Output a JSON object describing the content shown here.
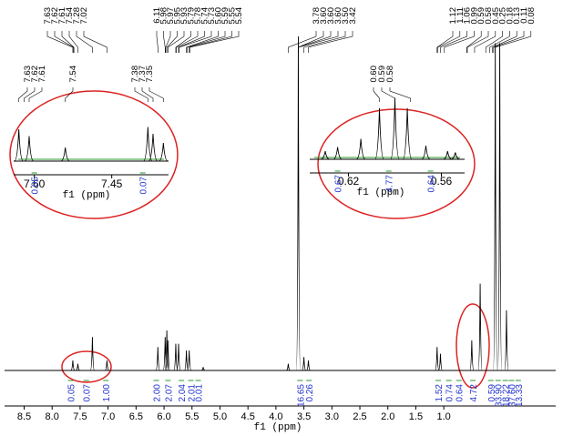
{
  "chart_data": {
    "type": "spectrum",
    "x_label": "f1 (ppm)",
    "xlim": [
      8.85,
      -1.0
    ],
    "xticks": [
      8.5,
      {
        "value": 8,
        "label": "8.0"
      },
      7.5,
      {
        "value": 7,
        "label": "7.0"
      },
      6.5,
      {
        "value": 6,
        "label": "6.0"
      },
      5.5,
      {
        "value": 5,
        "label": "5.0"
      },
      4.5,
      {
        "value": 4,
        "label": "4.0"
      },
      3.5,
      {
        "value": 3,
        "label": "3.0"
      },
      2.5,
      {
        "value": 2,
        "label": "2.0"
      },
      1.5,
      {
        "value": 1,
        "label": "1.0"
      }
    ],
    "ylim": [
      0,
      1
    ],
    "color": "#000000",
    "peaks": {
      "x": [
        7.63,
        7.54,
        7.28,
        7.02,
        6.11,
        5.98,
        5.95,
        5.93,
        5.79,
        5.74,
        5.6,
        5.55,
        5.3,
        3.78,
        3.6,
        3.5,
        3.42,
        1.12,
        1.06,
        0.5,
        0.35,
        0.08,
        0.0,
        -0.12
      ],
      "values": [
        0.03,
        0.02,
        0.1,
        0.03,
        0.07,
        0.1,
        0.12,
        0.09,
        0.08,
        0.08,
        0.06,
        0.06,
        0.01,
        0.02,
        1.0,
        0.04,
        0.03,
        0.07,
        0.05,
        0.09,
        0.26,
        0.98,
        0.98,
        0.18
      ]
    },
    "peak_label_groups": [
      [
        "7.63",
        "7.62",
        "7.61",
        "7.54",
        "7.28",
        "7.02"
      ],
      [
        "6.11",
        "5.98",
        "5.97",
        "5.95",
        "5.93",
        "5.79",
        "5.78",
        "5.74",
        "5.73",
        "5.60",
        "5.59",
        "5.55",
        "5.54"
      ],
      [
        "3.78",
        "3.60",
        "3.60",
        "3.60",
        "3.50",
        "3.42"
      ],
      [
        "1.12",
        "1.11",
        "1.06",
        "0.99",
        "0.59",
        "0.58",
        "0.45",
        "0.25",
        "0.18",
        "0.13",
        "0.11",
        "0.08"
      ]
    ],
    "integrals": {
      "x": [
        7.67,
        7.39,
        7.04,
        6.14,
        5.93,
        5.69,
        5.52,
        5.39,
        3.57,
        3.41,
        1.1,
        0.91,
        0.73,
        0.48,
        0.16,
        0.03,
        -0.1,
        -0.21,
        -0.33
      ],
      "labels": [
        "0.05",
        "0.07",
        "1.00",
        "2.00",
        "2.07",
        "2.04",
        "2.01",
        "0.01",
        "16.65",
        "0.26",
        "1.52",
        "0.74",
        "0.64",
        "4.72",
        "0.59",
        "33.90",
        "18.22",
        "37.60",
        "13.33"
      ]
    }
  },
  "insets": [
    {
      "x_label": "f1 (ppm)",
      "xlim": [
        7.64,
        7.34
      ],
      "xticks": [
        {
          "value": 7.6,
          "label": "7.60"
        },
        7.45
      ],
      "ylim": [
        0,
        1
      ],
      "peaks": {
        "x": [
          7.63,
          7.61,
          7.54,
          7.38,
          7.37,
          7.35
        ],
        "values": [
          0.7,
          0.55,
          0.3,
          0.75,
          0.6,
          0.4
        ]
      },
      "peak_labels": [
        "7.63",
        "7.62",
        "7.61",
        "7.54",
        "7.38",
        "7.37",
        "7.35"
      ],
      "integrals": {
        "x": [
          7.6,
          7.39
        ],
        "labels": [
          "0.05",
          "0.07"
        ]
      }
    },
    {
      "x_label": "f1 (ppm)",
      "xlim": [
        0.645,
        0.545
      ],
      "xticks": [
        0.62,
        0.56
      ],
      "ylim": [
        0,
        1
      ],
      "peaks": {
        "x": [
          0.635,
          0.627,
          0.612,
          0.6,
          0.59,
          0.582,
          0.57,
          0.556,
          0.551
        ],
        "values": [
          0.12,
          0.18,
          0.3,
          0.75,
          0.9,
          0.75,
          0.2,
          0.12,
          0.1
        ]
      },
      "peak_labels": [
        "0.60",
        "0.59",
        "0.58"
      ],
      "integrals": {
        "x": [
          0.627,
          0.594,
          0.567
        ],
        "labels": [
          "0.67",
          "4.77",
          "0.64"
        ]
      }
    }
  ]
}
